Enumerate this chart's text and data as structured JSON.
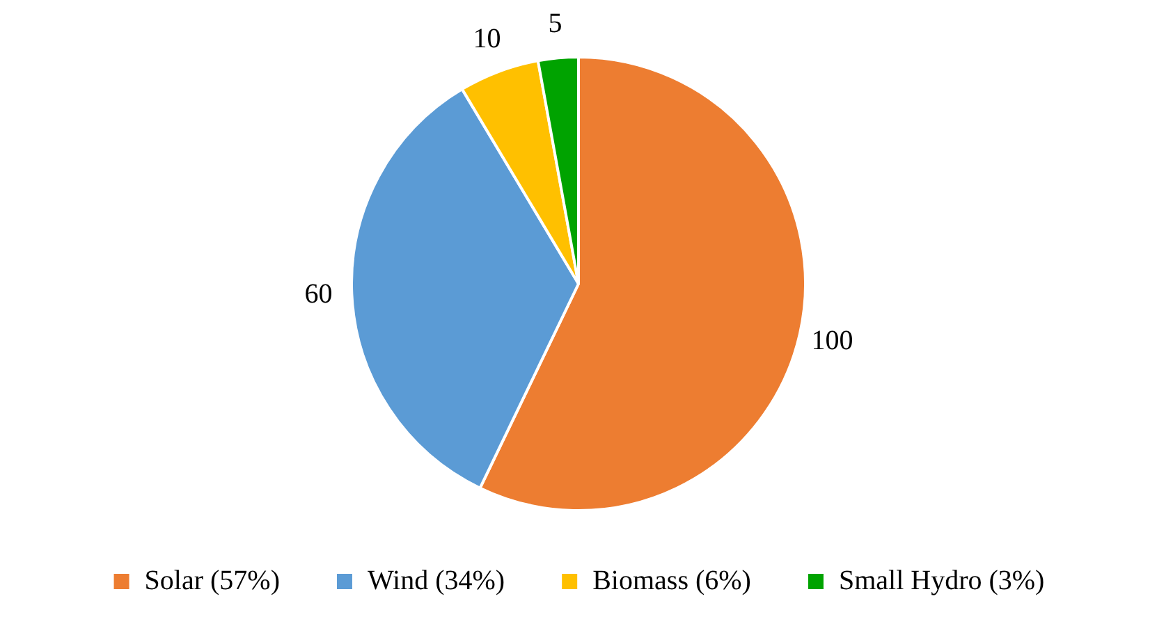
{
  "chart_data": {
    "type": "pie",
    "categories": [
      "Solar (57%)",
      "Wind (34%)",
      "Biomass (6%)",
      "Small Hydro (3%)"
    ],
    "values": [
      100,
      60,
      10,
      5
    ],
    "colors": [
      "#ed7d31",
      "#5b9bd5",
      "#ffc000",
      "#00a300"
    ],
    "data_labels": true,
    "legend": "bottom"
  }
}
